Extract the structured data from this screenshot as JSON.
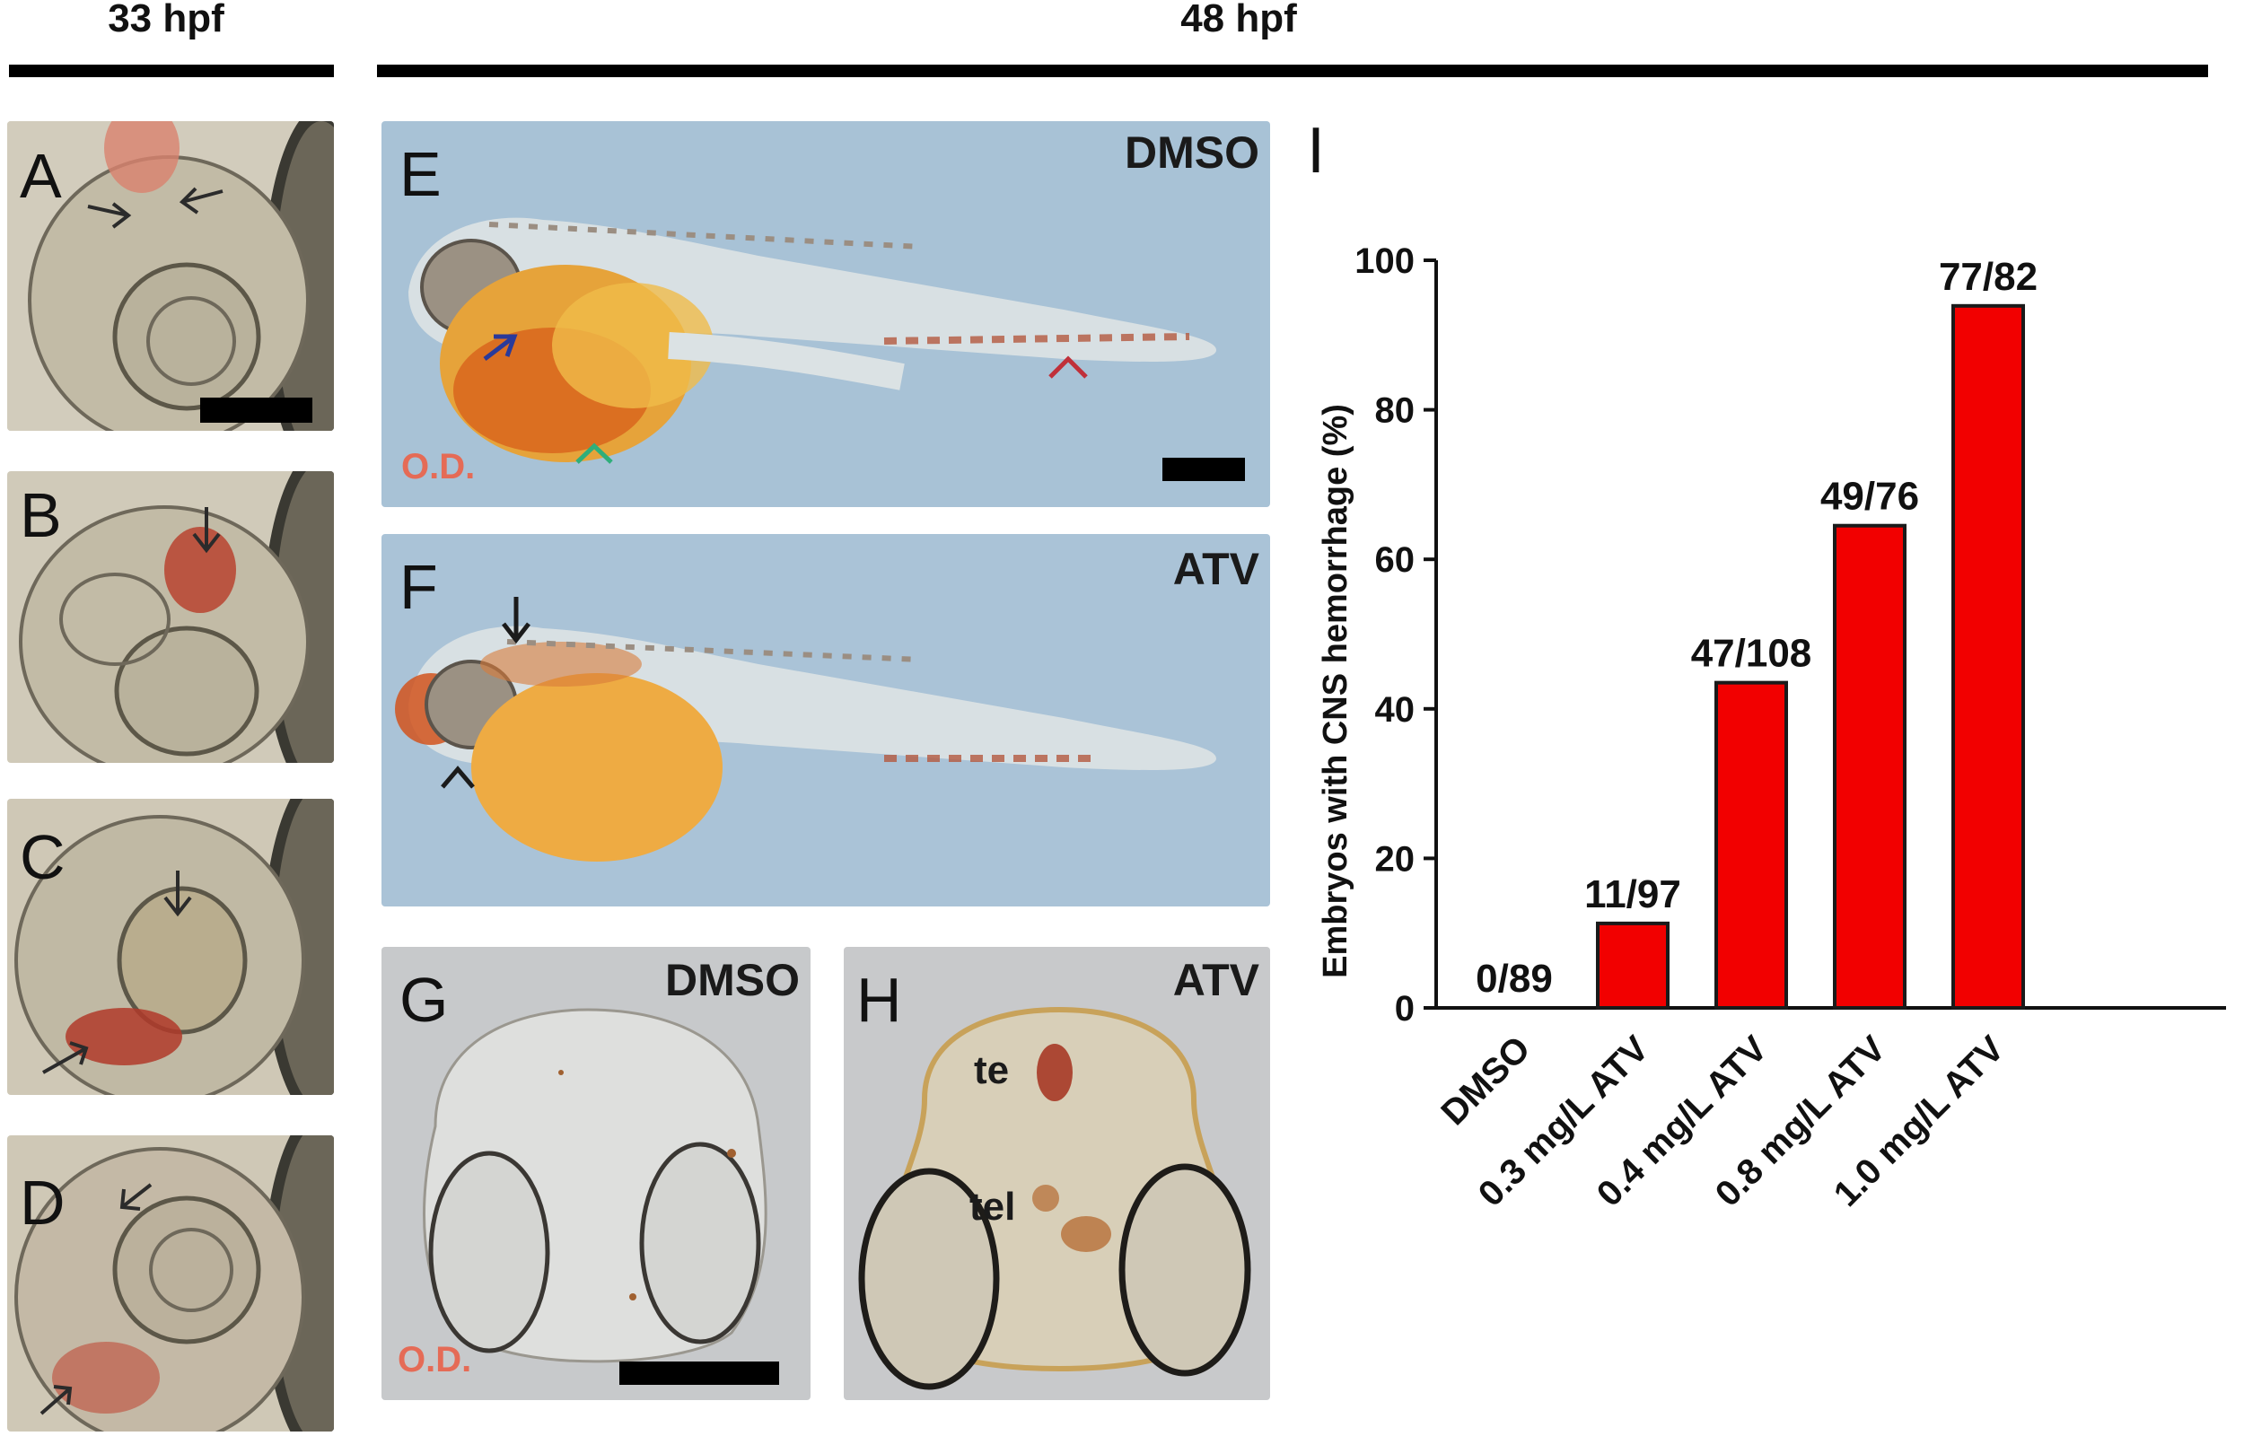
{
  "header": {
    "left_stage": "33 hpf",
    "right_stage": "48 hpf"
  },
  "panels": {
    "A": {
      "letter": "A"
    },
    "B": {
      "letter": "B"
    },
    "C": {
      "letter": "C"
    },
    "D": {
      "letter": "D"
    },
    "E": {
      "letter": "E",
      "label": "DMSO",
      "stain": "O.D."
    },
    "F": {
      "letter": "F",
      "label": "ATV"
    },
    "G": {
      "letter": "G",
      "label": "DMSO",
      "stain": "O.D."
    },
    "H": {
      "letter": "H",
      "label": "ATV",
      "region_te": "te",
      "region_tel": "tel"
    }
  },
  "colors": {
    "bar_fill": "#f20000",
    "bar_stroke": "#1a1a1a",
    "od_text": "#e56b56",
    "arrow_blue": "#2a3a9a",
    "arrow_green": "#2fae7a",
    "arrow_red": "#c0303a"
  },
  "chart_data": {
    "panel_letter": "I",
    "type": "bar",
    "ylabel": "Embryos with CNS hemorrhage (%)",
    "ylim": [
      0,
      100
    ],
    "yticks": [
      0,
      20,
      40,
      60,
      80,
      100
    ],
    "categories": [
      "DMSO",
      "0.3 mg/L ATV",
      "0.4 mg/L ATV",
      "0.8 mg/L ATV",
      "1.0 mg/L ATV"
    ],
    "values": [
      0,
      11.3,
      43.5,
      64.5,
      93.9
    ],
    "bar_labels": [
      "0/89",
      "11/97",
      "47/108",
      "49/76",
      "77/82"
    ]
  }
}
